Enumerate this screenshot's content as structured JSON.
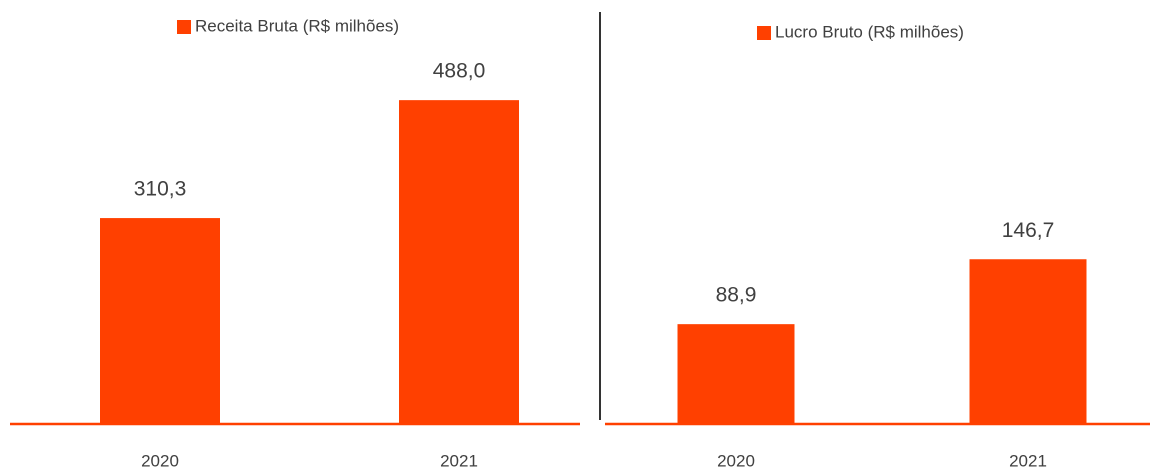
{
  "chart_data": [
    {
      "type": "bar",
      "categories": [
        "2020",
        "2021"
      ],
      "series": [
        {
          "name": "Receita Bruta (R$ milhões)",
          "color": "#ff4000",
          "values": [
            310.3,
            488.0
          ],
          "value_labels": [
            "310,3",
            "488,0"
          ]
        }
      ],
      "ylim": [
        0,
        550
      ]
    },
    {
      "type": "bar",
      "categories": [
        "2020",
        "2021"
      ],
      "series": [
        {
          "name": "Lucro Bruto  (R$ milhões)",
          "color": "#ff4000",
          "values": [
            88.9,
            146.7
          ],
          "value_labels": [
            "88,9",
            "146,7"
          ]
        }
      ],
      "ylim": [
        0,
        325
      ]
    }
  ]
}
